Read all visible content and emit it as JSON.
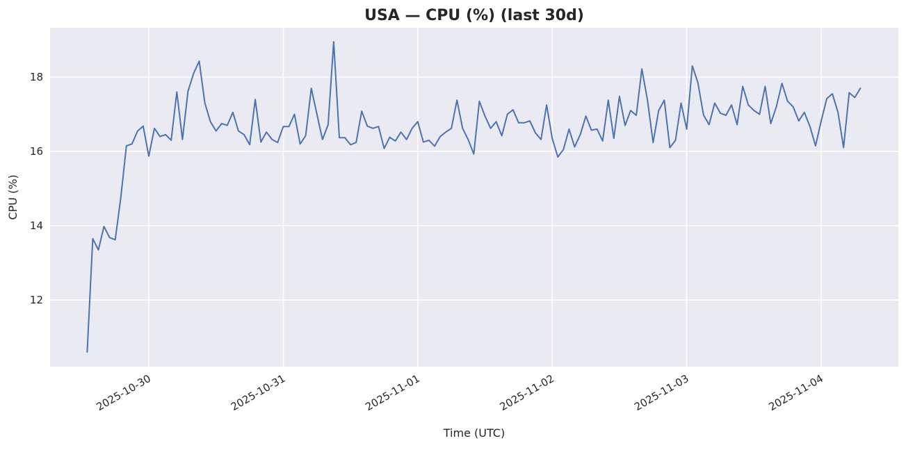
{
  "chart_data": {
    "type": "line",
    "title": "USA — CPU (%) (last 30d)",
    "xlabel": "Time (UTC)",
    "ylabel": "CPU (%)",
    "ylim": [
      10.2,
      19.35
    ],
    "grid": true,
    "legend": null,
    "style": {
      "background": "#eaeaf2",
      "grid_color": "#ffffff",
      "line_color": "#4c72b0",
      "line_width": 2
    },
    "x_start": "2025-10-29 13:00",
    "x_step": "1h",
    "x_ticks": [
      "2025-10-30",
      "2025-10-31",
      "2025-11-01",
      "2025-11-02",
      "2025-11-03",
      "2025-11-04"
    ],
    "y_ticks": [
      12,
      14,
      16,
      18
    ],
    "series": [
      {
        "name": "CPU (%)",
        "values": [
          10.6,
          13.65,
          13.35,
          13.98,
          13.68,
          13.62,
          14.75,
          16.15,
          16.2,
          16.55,
          16.68,
          15.87,
          16.62,
          16.4,
          16.45,
          16.3,
          17.6,
          16.32,
          17.62,
          18.1,
          18.43,
          17.3,
          16.8,
          16.55,
          16.75,
          16.7,
          17.05,
          16.55,
          16.45,
          16.18,
          17.4,
          16.25,
          16.52,
          16.32,
          16.24,
          16.67,
          16.67,
          17.0,
          16.2,
          16.42,
          17.7,
          17.0,
          16.32,
          16.72,
          18.95,
          16.37,
          16.37,
          16.18,
          16.24,
          17.08,
          16.68,
          16.62,
          16.67,
          16.08,
          16.38,
          16.28,
          16.52,
          16.32,
          16.62,
          16.8,
          16.25,
          16.3,
          16.14,
          16.4,
          16.52,
          16.62,
          17.38,
          16.62,
          16.32,
          15.93,
          17.35,
          16.95,
          16.62,
          16.8,
          16.42,
          17.0,
          17.12,
          16.77,
          16.77,
          16.82,
          16.5,
          16.32,
          17.25,
          16.35,
          15.85,
          16.05,
          16.6,
          16.12,
          16.45,
          16.95,
          16.57,
          16.6,
          16.28,
          17.38,
          16.35,
          17.48,
          16.7,
          17.1,
          16.97,
          18.22,
          17.38,
          16.24,
          17.1,
          17.38,
          16.1,
          16.3,
          17.3,
          16.6,
          18.3,
          17.85,
          16.98,
          16.72,
          17.3,
          17.03,
          16.97,
          17.25,
          16.72,
          17.75,
          17.25,
          17.1,
          17.0,
          17.75,
          16.75,
          17.2,
          17.83,
          17.35,
          17.2,
          16.82,
          17.05,
          16.67,
          16.15,
          16.82,
          17.42,
          17.55,
          17.05,
          16.1,
          17.58,
          17.45,
          17.7
        ]
      }
    ]
  }
}
